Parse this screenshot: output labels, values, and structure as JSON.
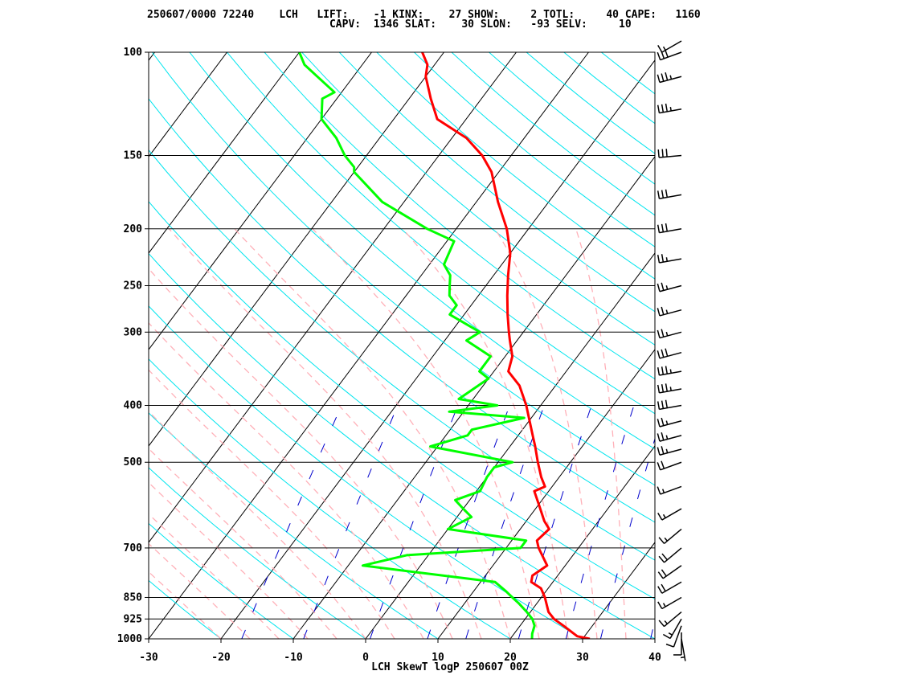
{
  "header": {
    "line1": "250607/0000 72240    LCH   LIFT:    -1 KINX:    27 SHOW:     2 TOTL:     40 CAPE:   1160",
    "line2": "                             CAPV:  1346 SLAT:    30 SLON:   -93 SELV:     10"
  },
  "chart_data": {
    "type": "line",
    "title": "LCH SkewT logP 250607 00Z",
    "xlabel": "",
    "ylabel": "",
    "x_ticks": [
      "-30",
      "-20",
      "-10",
      "0",
      "10",
      "20",
      "30",
      "40"
    ],
    "y_ticks": [
      "100",
      "150",
      "200",
      "250",
      "300",
      "400",
      "500",
      "700",
      "850",
      "925",
      "1000"
    ],
    "y_tick_values": [
      100,
      150,
      200,
      250,
      300,
      400,
      500,
      700,
      850,
      925,
      1000
    ],
    "xlim": [
      -30,
      40
    ],
    "ylim": [
      1000,
      100
    ],
    "y_scale": "log",
    "grid": true,
    "series": [
      {
        "color": "#ff0000",
        "points": [
          [
            1000,
            31
          ],
          [
            990,
            29
          ],
          [
            950,
            26
          ],
          [
            925,
            24
          ],
          [
            900,
            22.5
          ],
          [
            850,
            20.5
          ],
          [
            820,
            19
          ],
          [
            800,
            17
          ],
          [
            780,
            16.5
          ],
          [
            750,
            17.5
          ],
          [
            700,
            14.5
          ],
          [
            680,
            13.5
          ],
          [
            650,
            14
          ],
          [
            630,
            12.5
          ],
          [
            590,
            10
          ],
          [
            560,
            8
          ],
          [
            550,
            9
          ],
          [
            530,
            7.5
          ],
          [
            500,
            5.5
          ],
          [
            470,
            3.5
          ],
          [
            450,
            2
          ],
          [
            400,
            -2
          ],
          [
            370,
            -5
          ],
          [
            350,
            -8
          ],
          [
            330,
            -9
          ],
          [
            310,
            -11
          ],
          [
            300,
            -12
          ],
          [
            280,
            -14
          ],
          [
            260,
            -16
          ],
          [
            240,
            -18
          ],
          [
            220,
            -20
          ],
          [
            200,
            -23
          ],
          [
            180,
            -27
          ],
          [
            160,
            -31
          ],
          [
            150,
            -34
          ],
          [
            140,
            -38
          ],
          [
            130,
            -44
          ],
          [
            120,
            -47
          ],
          [
            110,
            -50
          ],
          [
            105,
            -51
          ],
          [
            100,
            -53
          ]
        ]
      },
      {
        "color": "#00ff00",
        "points": [
          [
            1000,
            23
          ],
          [
            980,
            22.5
          ],
          [
            950,
            22
          ],
          [
            925,
            21
          ],
          [
            900,
            19.5
          ],
          [
            870,
            17.5
          ],
          [
            850,
            16
          ],
          [
            830,
            14.5
          ],
          [
            800,
            12
          ],
          [
            750,
            -8
          ],
          [
            720,
            -3
          ],
          [
            700,
            12
          ],
          [
            680,
            12
          ],
          [
            650,
            0
          ],
          [
            620,
            2
          ],
          [
            600,
            0
          ],
          [
            580,
            -2
          ],
          [
            560,
            0.5
          ],
          [
            530,
            0
          ],
          [
            510,
            0
          ],
          [
            500,
            2
          ],
          [
            470,
            -11
          ],
          [
            450,
            -7
          ],
          [
            440,
            -7
          ],
          [
            420,
            -1
          ],
          [
            410,
            -12
          ],
          [
            400,
            -6
          ],
          [
            390,
            -12
          ],
          [
            360,
            -10
          ],
          [
            350,
            -12
          ],
          [
            330,
            -12
          ],
          [
            310,
            -17
          ],
          [
            300,
            -16
          ],
          [
            280,
            -22
          ],
          [
            270,
            -22
          ],
          [
            260,
            -24
          ],
          [
            250,
            -25
          ],
          [
            240,
            -26
          ],
          [
            230,
            -28
          ],
          [
            210,
            -29
          ],
          [
            200,
            -34
          ],
          [
            180,
            -43
          ],
          [
            160,
            -50
          ],
          [
            157,
            -50.5
          ],
          [
            150,
            -53
          ],
          [
            140,
            -56
          ],
          [
            130,
            -60
          ],
          [
            120,
            -62
          ],
          [
            117,
            -61
          ],
          [
            110,
            -65
          ],
          [
            105,
            -68
          ],
          [
            100,
            -70
          ]
        ]
      }
    ],
    "wind_barbs": [
      {
        "p": 1000,
        "dir": 170,
        "kt": 5
      },
      {
        "p": 975,
        "dir": 180,
        "kt": 10
      },
      {
        "p": 950,
        "dir": 200,
        "kt": 10
      },
      {
        "p": 925,
        "dir": 210,
        "kt": 15
      },
      {
        "p": 900,
        "dir": 230,
        "kt": 15
      },
      {
        "p": 850,
        "dir": 240,
        "kt": 15
      },
      {
        "p": 800,
        "dir": 240,
        "kt": 20
      },
      {
        "p": 750,
        "dir": 235,
        "kt": 20
      },
      {
        "p": 700,
        "dir": 230,
        "kt": 20
      },
      {
        "p": 650,
        "dir": 230,
        "kt": 15
      },
      {
        "p": 600,
        "dir": 240,
        "kt": 15
      },
      {
        "p": 550,
        "dir": 250,
        "kt": 15
      },
      {
        "p": 500,
        "dir": 250,
        "kt": 20
      },
      {
        "p": 475,
        "dir": 255,
        "kt": 25
      },
      {
        "p": 450,
        "dir": 255,
        "kt": 25
      },
      {
        "p": 425,
        "dir": 255,
        "kt": 25
      },
      {
        "p": 400,
        "dir": 260,
        "kt": 30
      },
      {
        "p": 375,
        "dir": 260,
        "kt": 35
      },
      {
        "p": 350,
        "dir": 260,
        "kt": 35
      },
      {
        "p": 325,
        "dir": 255,
        "kt": 30
      },
      {
        "p": 300,
        "dir": 255,
        "kt": 25
      },
      {
        "p": 275,
        "dir": 255,
        "kt": 25
      },
      {
        "p": 250,
        "dir": 255,
        "kt": 25
      },
      {
        "p": 225,
        "dir": 260,
        "kt": 25
      },
      {
        "p": 200,
        "dir": 260,
        "kt": 30
      },
      {
        "p": 175,
        "dir": 260,
        "kt": 30
      },
      {
        "p": 150,
        "dir": 265,
        "kt": 30
      },
      {
        "p": 125,
        "dir": 260,
        "kt": 35
      },
      {
        "p": 110,
        "dir": 255,
        "kt": 35
      },
      {
        "p": 100,
        "dir": 250,
        "kt": 30
      },
      {
        "p": 90,
        "dir": 240,
        "kt": 15
      }
    ]
  }
}
